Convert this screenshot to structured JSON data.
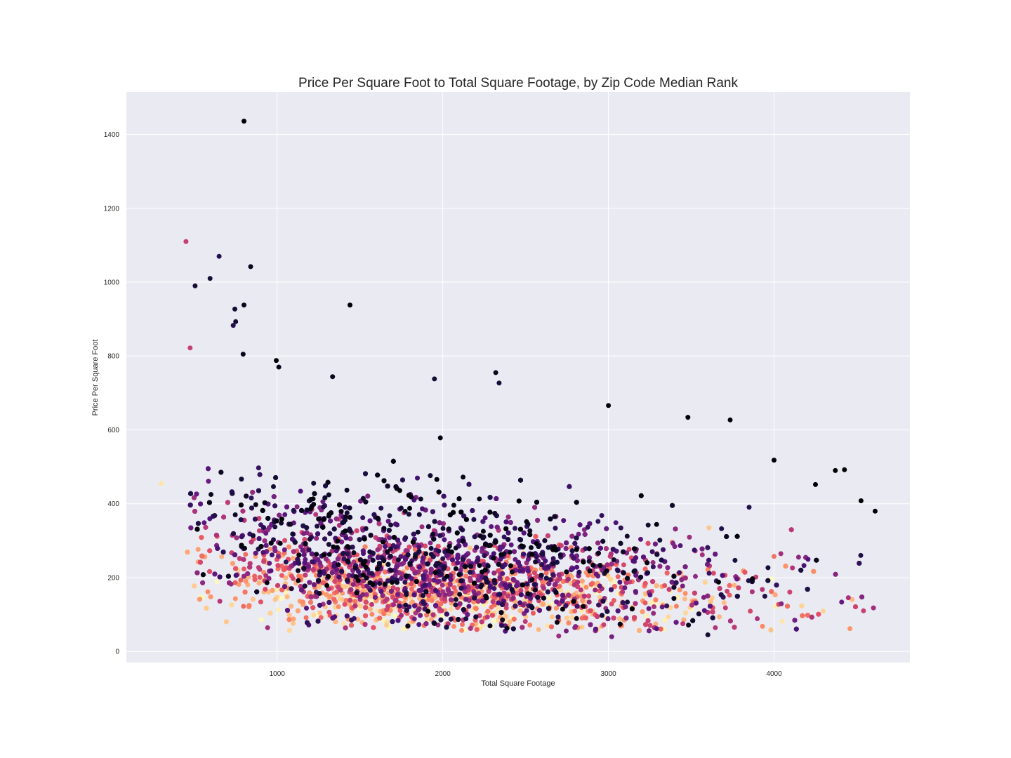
{
  "chart_data": {
    "type": "scatter",
    "title": "Price Per Square Foot to Total Square Footage, by Zip Code Median Rank",
    "xlabel": "Total Square Footage",
    "ylabel": "Price Per Square Foot",
    "xlim": [
      90,
      4820
    ],
    "ylim": [
      -30,
      1515
    ],
    "x_ticks": [
      1000,
      2000,
      3000,
      4000
    ],
    "y_ticks": [
      0,
      200,
      400,
      600,
      800,
      1000,
      1200,
      1400
    ],
    "grid": true,
    "colormap": "magma",
    "colors": {
      "plot_background": "#eaeaf2",
      "grid": "#ffffff",
      "text": "#262626"
    },
    "highlight_points": [
      {
        "x": 800,
        "y": 1436,
        "rank": 0.0
      },
      {
        "x": 450,
        "y": 1110,
        "rank": 0.55
      },
      {
        "x": 650,
        "y": 1070,
        "rank": 0.15
      },
      {
        "x": 840,
        "y": 1042,
        "rank": 0.05
      },
      {
        "x": 595,
        "y": 1010,
        "rank": 0.1
      },
      {
        "x": 505,
        "y": 990,
        "rank": 0.1
      },
      {
        "x": 1440,
        "y": 938,
        "rank": 0.0
      },
      {
        "x": 800,
        "y": 938,
        "rank": 0.05
      },
      {
        "x": 745,
        "y": 927,
        "rank": 0.1
      },
      {
        "x": 750,
        "y": 893,
        "rank": 0.1
      },
      {
        "x": 735,
        "y": 883,
        "rank": 0.15
      },
      {
        "x": 475,
        "y": 822,
        "rank": 0.55
      },
      {
        "x": 795,
        "y": 805,
        "rank": 0.05
      },
      {
        "x": 995,
        "y": 788,
        "rank": 0.0
      },
      {
        "x": 1010,
        "y": 770,
        "rank": 0.05
      },
      {
        "x": 2320,
        "y": 755,
        "rank": 0.05
      },
      {
        "x": 1335,
        "y": 744,
        "rank": 0.05
      },
      {
        "x": 1950,
        "y": 738,
        "rank": 0.1
      },
      {
        "x": 2340,
        "y": 727,
        "rank": 0.1
      },
      {
        "x": 3000,
        "y": 666,
        "rank": 0.0
      },
      {
        "x": 3480,
        "y": 634,
        "rank": 0.0
      },
      {
        "x": 3735,
        "y": 627,
        "rank": 0.0
      },
      {
        "x": 4000,
        "y": 518,
        "rank": 0.0
      },
      {
        "x": 4370,
        "y": 490,
        "rank": 0.0
      },
      {
        "x": 4425,
        "y": 492,
        "rank": 0.0
      },
      {
        "x": 4525,
        "y": 408,
        "rank": 0.0
      },
      {
        "x": 4610,
        "y": 380,
        "rank": 0.0
      },
      {
        "x": 4250,
        "y": 452,
        "rank": 0.0
      },
      {
        "x": 300,
        "y": 455,
        "rank": 0.95
      },
      {
        "x": 3600,
        "y": 45,
        "rank": 0.1
      },
      {
        "x": 3020,
        "y": 40,
        "rank": 0.35
      },
      {
        "x": 2700,
        "y": 42,
        "rank": 0.45
      },
      {
        "x": 3930,
        "y": 68,
        "rank": 0.75
      },
      {
        "x": 4050,
        "y": 82,
        "rank": 0.95
      },
      {
        "x": 4540,
        "y": 110,
        "rank": 0.55
      },
      {
        "x": 4600,
        "y": 118,
        "rank": 0.45
      }
    ]
  }
}
